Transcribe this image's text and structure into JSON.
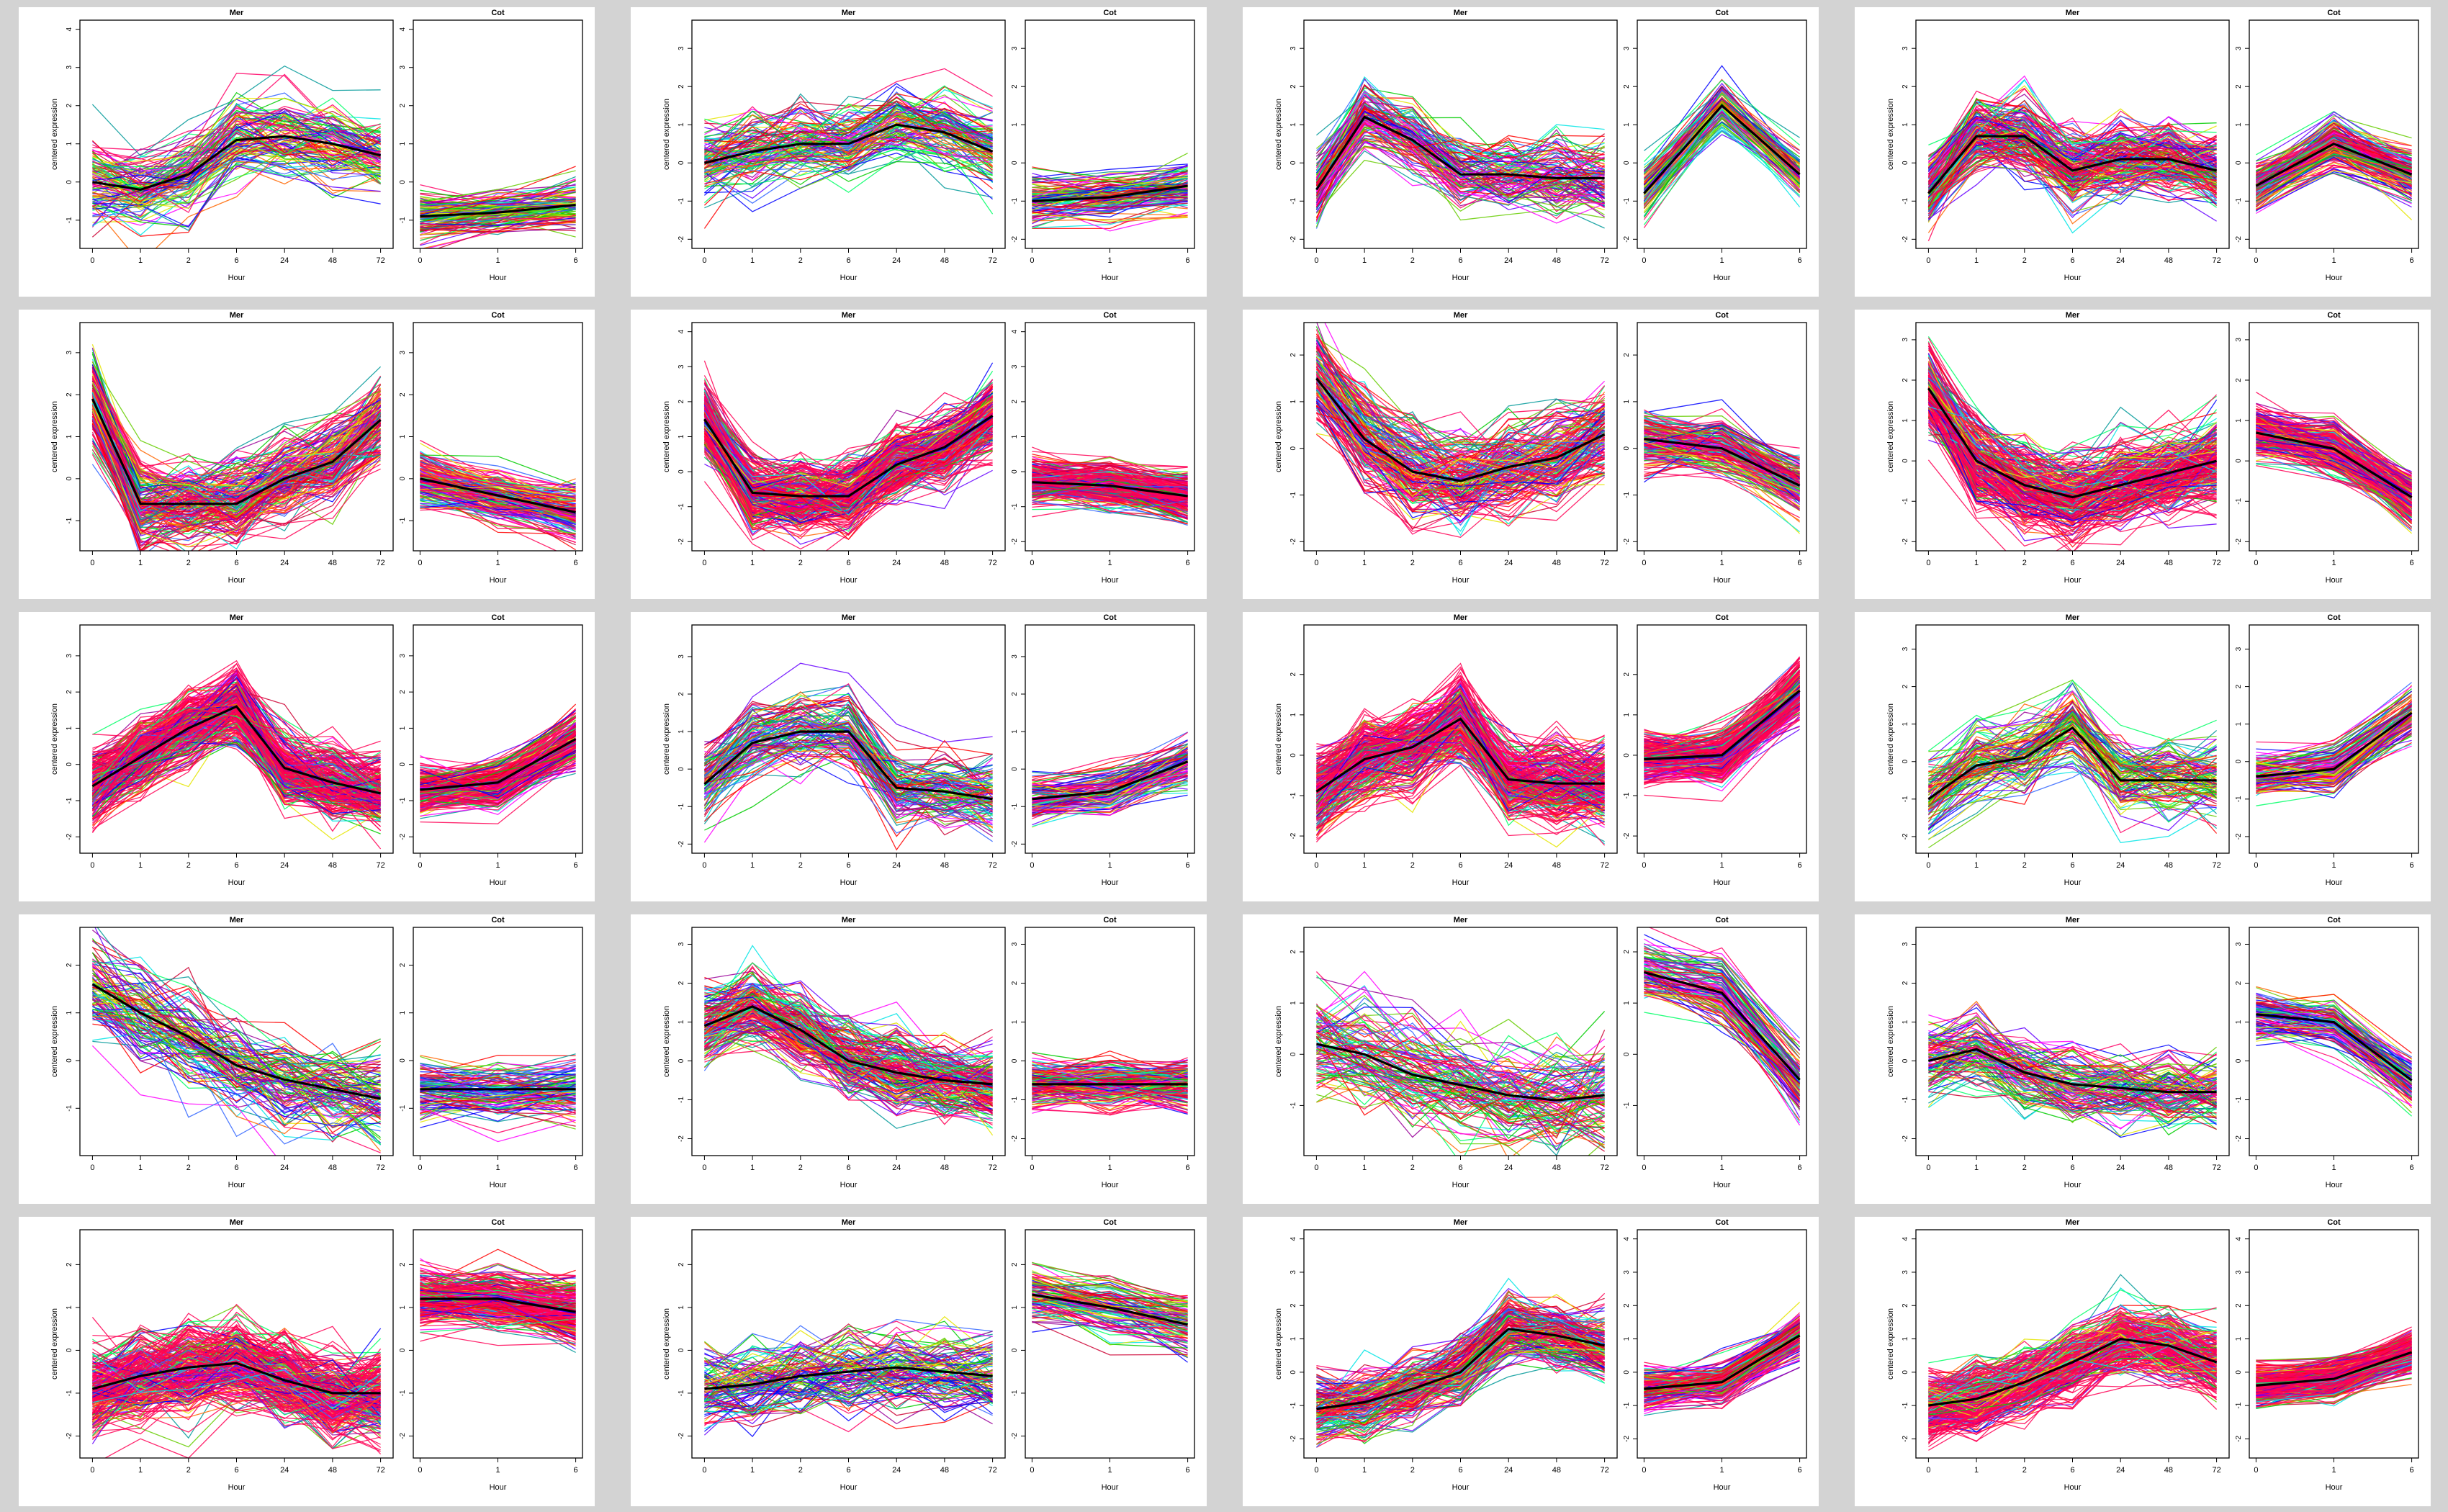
{
  "chart_data": [
    {
      "type": "line",
      "mer_title": "Mer",
      "cot_title": "Cot",
      "ylabel": "centered expression",
      "xlabel": "Hour",
      "mer_x": [
        "0",
        "1",
        "2",
        "6",
        "24",
        "48",
        "72"
      ],
      "cot_x": [
        "0",
        "1",
        "6"
      ],
      "mer_ylim": [
        -1.5,
        4
      ],
      "mer_yticks": [
        -1,
        0,
        1,
        2,
        3,
        4
      ],
      "cot_ylim": [
        -1.5,
        4
      ],
      "cot_yticks": [
        -1,
        0,
        1,
        2,
        3,
        4
      ],
      "mer_mean": [
        0,
        -0.2,
        0.2,
        1.1,
        1.2,
        1.0,
        0.7
      ],
      "cot_mean": [
        -0.9,
        -0.8,
        -0.6
      ],
      "density": "low"
    },
    {
      "type": "line",
      "mer_title": "Mer",
      "cot_title": "Cot",
      "ylabel": "centered expression",
      "xlabel": "Hour",
      "mer_x": [
        "0",
        "1",
        "2",
        "6",
        "24",
        "48",
        "72"
      ],
      "cot_x": [
        "0",
        "1",
        "6"
      ],
      "mer_ylim": [
        -2,
        3.5
      ],
      "mer_yticks": [
        -2,
        -1,
        0,
        1,
        2,
        3
      ],
      "cot_ylim": [
        -2,
        3.5
      ],
      "cot_yticks": [
        -2,
        -1,
        0,
        1,
        2,
        3
      ],
      "mer_mean": [
        0,
        0.3,
        0.5,
        0.5,
        1.0,
        0.8,
        0.3
      ],
      "cot_mean": [
        -1,
        -0.9,
        -0.6
      ],
      "density": "low"
    },
    {
      "type": "line",
      "mer_title": "Mer",
      "cot_title": "Cot",
      "ylabel": "centered expression",
      "xlabel": "Hour",
      "mer_x": [
        "0",
        "1",
        "2",
        "6",
        "24",
        "48",
        "72"
      ],
      "cot_x": [
        "0",
        "1",
        "6"
      ],
      "mer_ylim": [
        -2,
        3.5
      ],
      "mer_yticks": [
        -2,
        -1,
        0,
        1,
        2,
        3
      ],
      "cot_ylim": [
        -2,
        3.5
      ],
      "cot_yticks": [
        -2,
        -1,
        0,
        1,
        2,
        3
      ],
      "mer_mean": [
        -0.7,
        1.2,
        0.6,
        -0.3,
        -0.3,
        -0.4,
        -0.4
      ],
      "cot_mean": [
        -0.8,
        1.5,
        -0.3
      ],
      "density": "low"
    },
    {
      "type": "line",
      "mer_title": "Mer",
      "cot_title": "Cot",
      "ylabel": "centered expression",
      "xlabel": "Hour",
      "mer_x": [
        "0",
        "1",
        "2",
        "6",
        "24",
        "48",
        "72"
      ],
      "cot_x": [
        "0",
        "1",
        "6"
      ],
      "mer_ylim": [
        -2,
        3.5
      ],
      "mer_yticks": [
        -2,
        -1,
        0,
        1,
        2,
        3
      ],
      "cot_ylim": [
        -2,
        3.5
      ],
      "cot_yticks": [
        -2,
        -1,
        0,
        1,
        2,
        3
      ],
      "mer_mean": [
        -0.8,
        0.7,
        0.7,
        -0.2,
        0.1,
        0.1,
        -0.2
      ],
      "cot_mean": [
        -0.6,
        0.5,
        -0.3
      ],
      "density": "medium"
    },
    {
      "type": "line",
      "mer_title": "Mer",
      "cot_title": "Cot",
      "ylabel": "centered expression",
      "xlabel": "Hour",
      "mer_x": [
        "0",
        "1",
        "2",
        "6",
        "24",
        "48",
        "72"
      ],
      "cot_x": [
        "0",
        "1",
        "6"
      ],
      "mer_ylim": [
        -1.5,
        3.5
      ],
      "mer_yticks": [
        -1,
        0,
        1,
        2,
        3
      ],
      "cot_ylim": [
        -1.5,
        3.5
      ],
      "cot_yticks": [
        -1,
        0,
        1,
        2,
        3
      ],
      "mer_mean": [
        1.9,
        -0.6,
        -0.6,
        -0.6,
        0,
        0.4,
        1.4
      ],
      "cot_mean": [
        0,
        -0.4,
        -0.8
      ],
      "density": "medium"
    },
    {
      "type": "line",
      "mer_title": "Mer",
      "cot_title": "Cot",
      "ylabel": "centered expression",
      "xlabel": "Hour",
      "mer_x": [
        "0",
        "1",
        "2",
        "6",
        "24",
        "48",
        "72"
      ],
      "cot_x": [
        "0",
        "1",
        "6"
      ],
      "mer_ylim": [
        -2,
        4
      ],
      "mer_yticks": [
        -2,
        -1,
        0,
        1,
        2,
        3,
        4
      ],
      "cot_ylim": [
        -2,
        4
      ],
      "cot_yticks": [
        -2,
        -1,
        0,
        1,
        2,
        3,
        4
      ],
      "mer_mean": [
        1.5,
        -0.6,
        -0.7,
        -0.7,
        0.2,
        0.7,
        1.6
      ],
      "cot_mean": [
        -0.3,
        -0.4,
        -0.7
      ],
      "density": "high"
    },
    {
      "type": "line",
      "mer_title": "Mer",
      "cot_title": "Cot",
      "ylabel": "centered expression",
      "xlabel": "Hour",
      "mer_x": [
        "0",
        "1",
        "2",
        "6",
        "24",
        "48",
        "72"
      ],
      "cot_x": [
        "0",
        "1",
        "6"
      ],
      "mer_ylim": [
        -2,
        2.5
      ],
      "mer_yticks": [
        -2,
        -1,
        0,
        1,
        2
      ],
      "cot_ylim": [
        -2,
        2.5
      ],
      "cot_yticks": [
        -2,
        -1,
        0,
        1,
        2
      ],
      "mer_mean": [
        1.5,
        0.2,
        -0.5,
        -0.7,
        -0.4,
        -0.2,
        0.3
      ],
      "cot_mean": [
        0.2,
        0,
        -0.8
      ],
      "density": "medium"
    },
    {
      "type": "line",
      "mer_title": "Mer",
      "cot_title": "Cot",
      "ylabel": "centered expression",
      "xlabel": "Hour",
      "mer_x": [
        "0",
        "1",
        "2",
        "6",
        "24",
        "48",
        "72"
      ],
      "cot_x": [
        "0",
        "1",
        "6"
      ],
      "mer_ylim": [
        -2,
        3.2
      ],
      "mer_yticks": [
        -2,
        -1,
        0,
        1,
        2,
        3
      ],
      "cot_ylim": [
        -2,
        3.2
      ],
      "cot_yticks": [
        -2,
        -1,
        0,
        1,
        2,
        3
      ],
      "mer_mean": [
        1.8,
        0,
        -0.6,
        -0.9,
        -0.6,
        -0.3,
        0
      ],
      "cot_mean": [
        0.7,
        0.3,
        -0.9
      ],
      "density": "high"
    },
    {
      "type": "line",
      "mer_title": "Mer",
      "cot_title": "Cot",
      "ylabel": "centered expression",
      "xlabel": "Hour",
      "mer_x": [
        "0",
        "1",
        "2",
        "6",
        "24",
        "48",
        "72"
      ],
      "cot_x": [
        "0",
        "1",
        "6"
      ],
      "mer_ylim": [
        -2.2,
        3.6
      ],
      "mer_yticks": [
        -2,
        -1,
        0,
        1,
        2,
        3
      ],
      "cot_ylim": [
        -2.2,
        3.6
      ],
      "cot_yticks": [
        -2,
        -1,
        0,
        1,
        2,
        3
      ],
      "mer_mean": [
        -0.6,
        0.2,
        1.0,
        1.6,
        -0.1,
        -0.5,
        -0.8
      ],
      "cot_mean": [
        -0.7,
        -0.5,
        0.7
      ],
      "density": "high"
    },
    {
      "type": "line",
      "mer_title": "Mer",
      "cot_title": "Cot",
      "ylabel": "centered expression",
      "xlabel": "Hour",
      "mer_x": [
        "0",
        "1",
        "2",
        "6",
        "24",
        "48",
        "72"
      ],
      "cot_x": [
        "0",
        "1",
        "6"
      ],
      "mer_ylim": [
        -2,
        3.6
      ],
      "mer_yticks": [
        -2,
        -1,
        0,
        1,
        2,
        3
      ],
      "cot_ylim": [
        -2,
        3.6
      ],
      "cot_yticks": [
        -2,
        -1,
        0,
        1,
        2,
        3
      ],
      "mer_mean": [
        -0.4,
        0.7,
        1.0,
        1.0,
        -0.5,
        -0.6,
        -0.8
      ],
      "cot_mean": [
        -0.8,
        -0.6,
        0.2
      ],
      "density": "low"
    },
    {
      "type": "line",
      "mer_title": "Mer",
      "cot_title": "Cot",
      "ylabel": "centered expression",
      "xlabel": "Hour",
      "mer_x": [
        "0",
        "1",
        "2",
        "6",
        "24",
        "48",
        "72"
      ],
      "cot_x": [
        "0",
        "1",
        "6"
      ],
      "mer_ylim": [
        -2.2,
        3
      ],
      "mer_yticks": [
        -2,
        -1,
        0,
        1,
        2
      ],
      "cot_ylim": [
        -2.2,
        3
      ],
      "cot_yticks": [
        -2,
        -1,
        0,
        1,
        2
      ],
      "mer_mean": [
        -0.9,
        -0.1,
        0.2,
        0.9,
        -0.6,
        -0.7,
        -0.7
      ],
      "cot_mean": [
        -0.1,
        0,
        1.6
      ],
      "density": "high"
    },
    {
      "type": "line",
      "mer_title": "Mer",
      "cot_title": "Cot",
      "ylabel": "centered expression",
      "xlabel": "Hour",
      "mer_x": [
        "0",
        "1",
        "2",
        "6",
        "24",
        "48",
        "72"
      ],
      "cot_x": [
        "0",
        "1",
        "6"
      ],
      "mer_ylim": [
        -2.2,
        3.4
      ],
      "mer_yticks": [
        -2,
        -1,
        0,
        1,
        2,
        3
      ],
      "cot_ylim": [
        -2.2,
        3.4
      ],
      "cot_yticks": [
        -2,
        -1,
        0,
        1,
        2,
        3
      ],
      "mer_mean": [
        -1.0,
        -0.1,
        0.1,
        0.9,
        -0.5,
        -0.5,
        -0.5
      ],
      "cot_mean": [
        -0.4,
        -0.2,
        1.3
      ],
      "density": "low"
    },
    {
      "type": "line",
      "mer_title": "Mer",
      "cot_title": "Cot",
      "ylabel": "centered expression",
      "xlabel": "Hour",
      "mer_x": [
        "0",
        "1",
        "2",
        "6",
        "24",
        "48",
        "72"
      ],
      "cot_x": [
        "0",
        "1",
        "6"
      ],
      "mer_ylim": [
        -1.8,
        2.6
      ],
      "mer_yticks": [
        -1,
        0,
        1,
        2
      ],
      "cot_ylim": [
        -1.8,
        2.6
      ],
      "cot_yticks": [
        -1,
        0,
        1,
        2
      ],
      "mer_mean": [
        1.6,
        1.0,
        0.5,
        -0.1,
        -0.4,
        -0.6,
        -0.8
      ],
      "cot_mean": [
        -0.6,
        -0.6,
        -0.6
      ],
      "density": "low"
    },
    {
      "type": "line",
      "mer_title": "Mer",
      "cot_title": "Cot",
      "ylabel": "centered expression",
      "xlabel": "Hour",
      "mer_x": [
        "0",
        "1",
        "2",
        "6",
        "24",
        "48",
        "72"
      ],
      "cot_x": [
        "0",
        "1",
        "6"
      ],
      "mer_ylim": [
        -2.2,
        3.2
      ],
      "mer_yticks": [
        -2,
        -1,
        0,
        1,
        2,
        3
      ],
      "cot_ylim": [
        -2.2,
        3.2
      ],
      "cot_yticks": [
        -2,
        -1,
        0,
        1,
        2,
        3
      ],
      "mer_mean": [
        0.9,
        1.4,
        0.8,
        0,
        -0.3,
        -0.5,
        -0.6
      ],
      "cot_mean": [
        -0.6,
        -0.6,
        -0.6
      ],
      "density": "medium"
    },
    {
      "type": "line",
      "mer_title": "Mer",
      "cot_title": "Cot",
      "ylabel": "centered expression",
      "xlabel": "Hour",
      "mer_x": [
        "0",
        "1",
        "2",
        "6",
        "24",
        "48",
        "72"
      ],
      "cot_x": [
        "0",
        "1",
        "6"
      ],
      "mer_ylim": [
        -1.8,
        2.3
      ],
      "mer_yticks": [
        -1,
        0,
        1,
        2
      ],
      "cot_ylim": [
        -1.8,
        2.3
      ],
      "cot_yticks": [
        -1,
        0,
        1,
        2
      ],
      "mer_mean": [
        0.2,
        0,
        -0.4,
        -0.6,
        -0.8,
        -0.9,
        -0.8
      ],
      "cot_mean": [
        1.6,
        1.2,
        -0.5
      ],
      "density": "low"
    },
    {
      "type": "line",
      "mer_title": "Mer",
      "cot_title": "Cot",
      "ylabel": "centered expression",
      "xlabel": "Hour",
      "mer_x": [
        "0",
        "1",
        "2",
        "6",
        "24",
        "48",
        "72"
      ],
      "cot_x": [
        "0",
        "1",
        "6"
      ],
      "mer_ylim": [
        -2.2,
        3.2
      ],
      "mer_yticks": [
        -2,
        -1,
        0,
        1,
        2,
        3
      ],
      "cot_ylim": [
        -2.2,
        3.2
      ],
      "cot_yticks": [
        -2,
        -1,
        0,
        1,
        2,
        3
      ],
      "mer_mean": [
        0,
        0.3,
        -0.3,
        -0.6,
        -0.7,
        -0.8,
        -0.8
      ],
      "cot_mean": [
        1.2,
        1.0,
        -0.5
      ],
      "density": "low"
    },
    {
      "type": "line",
      "mer_title": "Mer",
      "cot_title": "Cot",
      "ylabel": "centered expression",
      "xlabel": "Hour",
      "mer_x": [
        "0",
        "1",
        "2",
        "6",
        "24",
        "48",
        "72"
      ],
      "cot_x": [
        "0",
        "1",
        "6"
      ],
      "mer_ylim": [
        -2.3,
        2.6
      ],
      "mer_yticks": [
        -2,
        -1,
        0,
        1,
        2
      ],
      "cot_ylim": [
        -2.3,
        2.6
      ],
      "cot_yticks": [
        -2,
        -1,
        0,
        1,
        2
      ],
      "mer_mean": [
        -0.9,
        -0.6,
        -0.4,
        -0.3,
        -0.7,
        -1.0,
        -1.0
      ],
      "cot_mean": [
        1.2,
        1.2,
        0.9
      ],
      "density": "high"
    },
    {
      "type": "line",
      "mer_title": "Mer",
      "cot_title": "Cot",
      "ylabel": "centered expression",
      "xlabel": "Hour",
      "mer_x": [
        "0",
        "1",
        "2",
        "6",
        "24",
        "48",
        "72"
      ],
      "cot_x": [
        "0",
        "1",
        "6"
      ],
      "mer_ylim": [
        -2.3,
        2.6
      ],
      "mer_yticks": [
        -2,
        -1,
        0,
        1,
        2
      ],
      "cot_ylim": [
        -2.3,
        2.6
      ],
      "cot_yticks": [
        -2,
        -1,
        0,
        1,
        2
      ],
      "mer_mean": [
        -0.9,
        -0.8,
        -0.6,
        -0.5,
        -0.4,
        -0.5,
        -0.6
      ],
      "cot_mean": [
        1.3,
        1.0,
        0.6
      ],
      "density": "low"
    },
    {
      "type": "line",
      "mer_title": "Mer",
      "cot_title": "Cot",
      "ylabel": "centered expression",
      "xlabel": "Hour",
      "mer_x": [
        "0",
        "1",
        "2",
        "6",
        "24",
        "48",
        "72"
      ],
      "cot_x": [
        "0",
        "1",
        "6"
      ],
      "mer_ylim": [
        -2.3,
        4
      ],
      "mer_yticks": [
        -2,
        -1,
        0,
        1,
        2,
        3,
        4
      ],
      "cot_ylim": [
        -2.3,
        4
      ],
      "cot_yticks": [
        -2,
        -1,
        0,
        1,
        2,
        3,
        4
      ],
      "mer_mean": [
        -1.1,
        -0.9,
        -0.5,
        0,
        1.3,
        1.1,
        0.8
      ],
      "cot_mean": [
        -0.5,
        -0.3,
        1.1
      ],
      "density": "medium"
    },
    {
      "type": "line",
      "mer_title": "Mer",
      "cot_title": "Cot",
      "ylabel": "centered expression",
      "xlabel": "Hour",
      "mer_x": [
        "0",
        "1",
        "2",
        "6",
        "24",
        "48",
        "72"
      ],
      "cot_x": [
        "0",
        "1",
        "6"
      ],
      "mer_ylim": [
        -2.3,
        4
      ],
      "mer_yticks": [
        -2,
        -1,
        0,
        1,
        2,
        3,
        4
      ],
      "cot_ylim": [
        -2.3,
        4
      ],
      "cot_yticks": [
        -2,
        -1,
        0,
        1,
        2,
        3,
        4
      ],
      "mer_mean": [
        -1.0,
        -0.8,
        -0.3,
        0.3,
        1.0,
        0.8,
        0.3
      ],
      "cot_mean": [
        -0.4,
        -0.2,
        0.6
      ],
      "density": "high"
    }
  ],
  "colors": {
    "background": "#d3d3d3",
    "panel": "#ffffff",
    "mean_line": "#000000",
    "palette": [
      "#ff0000",
      "#00cc00",
      "#0000ff",
      "#00e5e5",
      "#ff00ff",
      "#e5e500",
      "#ff0066",
      "#6600ff",
      "#00ff66",
      "#ff6600",
      "#009999",
      "#990099",
      "#3366ff",
      "#cc0033",
      "#66cc00"
    ],
    "dominant": "#ff0055"
  }
}
